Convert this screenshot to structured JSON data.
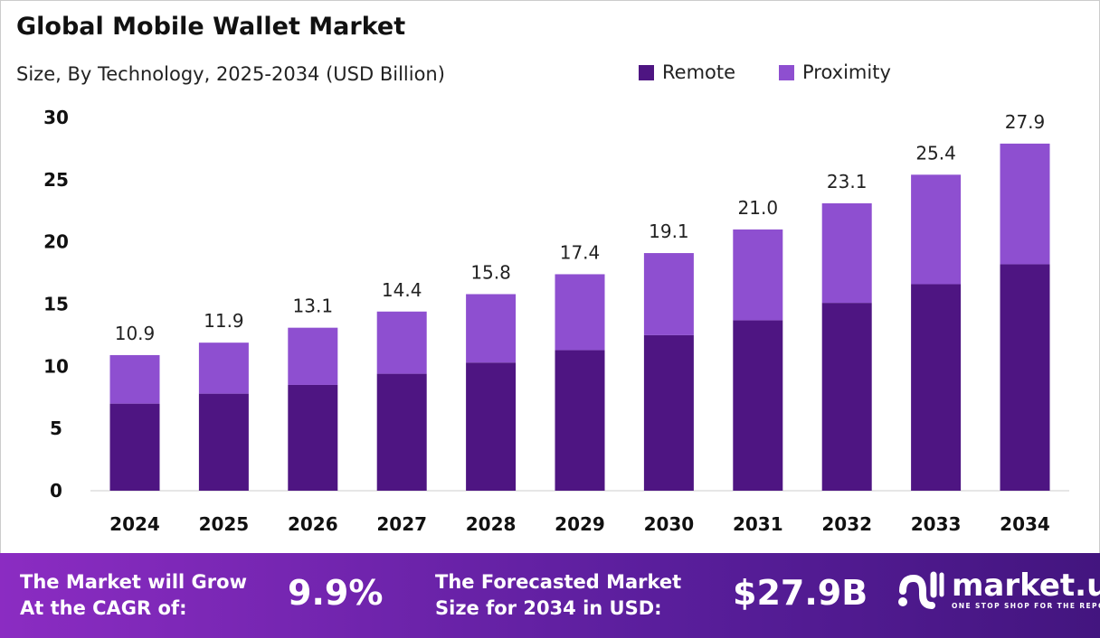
{
  "chart_data": {
    "type": "bar",
    "stacked": true,
    "title": "Global Mobile Wallet Market",
    "subtitle": "Size, By Technology, 2025-2034 (USD Billion)",
    "categories": [
      "2024",
      "2025",
      "2026",
      "2027",
      "2028",
      "2029",
      "2030",
      "2031",
      "2032",
      "2033",
      "2034"
    ],
    "series": [
      {
        "name": "Remote",
        "color": "#4e1582",
        "values": [
          7.0,
          7.8,
          8.5,
          9.4,
          10.3,
          11.3,
          12.5,
          13.7,
          15.1,
          16.6,
          18.2
        ]
      },
      {
        "name": "Proximity",
        "color": "#8e4fd0",
        "values": [
          3.9,
          4.1,
          4.6,
          5.0,
          5.5,
          6.1,
          6.6,
          7.3,
          8.0,
          8.8,
          9.7
        ]
      }
    ],
    "totals": [
      "10.9",
      "11.9",
      "13.1",
      "14.4",
      "15.8",
      "17.4",
      "19.1",
      "21.0",
      "23.1",
      "25.4",
      "27.9"
    ],
    "yticks": [
      "0",
      "5",
      "10",
      "15",
      "20",
      "25",
      "30"
    ],
    "ylim": [
      0,
      30
    ],
    "grid": false,
    "legend_position": "top-right"
  },
  "footer": {
    "cagr_label_1": "The Market will Grow",
    "cagr_label_2": "At the CAGR of:",
    "cagr_value": "9.9%",
    "forecast_label_1": "The Forecasted Market",
    "forecast_label_2": "Size for 2034 in USD:",
    "forecast_value": "$27.9B",
    "logo_name": "market.us",
    "logo_tagline": "ONE STOP SHOP FOR THE REPORTS"
  }
}
